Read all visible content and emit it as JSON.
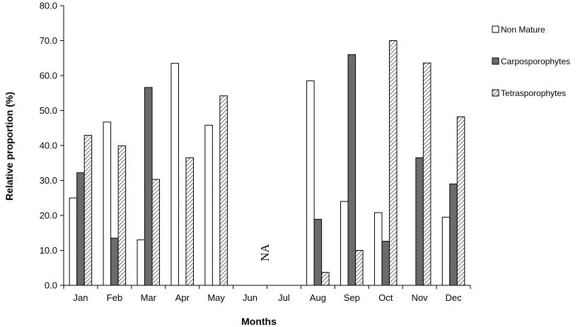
{
  "chart_data": {
    "type": "bar",
    "title": "",
    "xlabel": "Months",
    "ylabel": "Relative proportion (%)",
    "ylim": [
      0,
      80
    ],
    "ytick_step": 10,
    "ytick_labels": [
      "0.0",
      "10.0",
      "20.0",
      "30.0",
      "40.0",
      "50.0",
      "60.0",
      "70.0",
      "80.0"
    ],
    "categories": [
      "Jan",
      "Feb",
      "Mar",
      "Apr",
      "May",
      "Jun",
      "Jul",
      "Aug",
      "Sep",
      "Oct",
      "Nov",
      "Dec"
    ],
    "series": [
      {
        "name": "Non Mature",
        "style": "white",
        "values": [
          25.0,
          46.7,
          13.0,
          63.5,
          45.8,
          null,
          null,
          58.5,
          24.0,
          20.8,
          null,
          19.5
        ]
      },
      {
        "name": "Carposporophytes",
        "style": "dark-gray",
        "values": [
          32.2,
          13.5,
          56.6,
          null,
          null,
          null,
          null,
          18.9,
          66.0,
          12.6,
          36.5,
          29.0
        ]
      },
      {
        "name": "Tetrasporophytes",
        "style": "hatched",
        "values": [
          42.9,
          39.9,
          30.3,
          36.5,
          54.2,
          null,
          null,
          3.7,
          10.0,
          70.0,
          63.6,
          48.2
        ]
      }
    ],
    "annotation": {
      "text": "NA",
      "category_span": [
        "Jun",
        "Jul"
      ]
    },
    "legend_position": "right",
    "grid": false
  },
  "colors": {
    "non_mature_fill": "#ffffff",
    "carpo_fill": "#6b6b6b",
    "tetra_fill": "#ffffff",
    "tetra_hatch": "#4a4a4a",
    "outline": "#000000"
  }
}
